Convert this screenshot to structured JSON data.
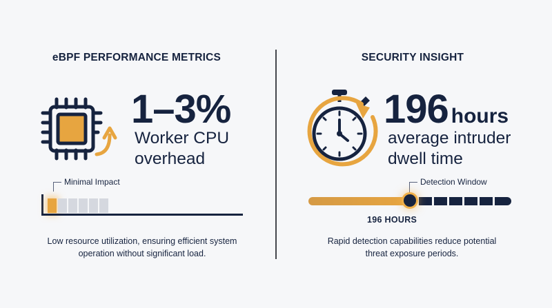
{
  "left": {
    "title": "eBPF PERFORMANCE METRICS",
    "big_value": "1–3%",
    "sub_line1": "Worker CPU",
    "sub_line2": "overhead",
    "callout": "Minimal Impact",
    "meter": {
      "segments_total": 6,
      "segments_active": 1
    },
    "caption_line1": "Low resource utilization, ensuring efficient system",
    "caption_line2": "operation without significant load."
  },
  "right": {
    "title": "SECURITY INSIGHT",
    "big_value": "196",
    "big_unit": "hours",
    "sub_line1": "average intruder",
    "sub_line2": "dwell time",
    "callout": "Detection Window",
    "timeline_label": "196 HOURS",
    "timeline": {
      "marker_fraction": 0.5,
      "dark_segments": 6
    },
    "caption_line1": "Rapid detection capabilities reduce potential",
    "caption_line2": "threat exposure periods."
  },
  "colors": {
    "navy": "#16233f",
    "orange": "#e7a540",
    "gray": "#d5d8df",
    "background": "#f6f7f9"
  },
  "icons": [
    "cpu-chip-icon",
    "upward-arrow-icon",
    "stopwatch-icon"
  ]
}
